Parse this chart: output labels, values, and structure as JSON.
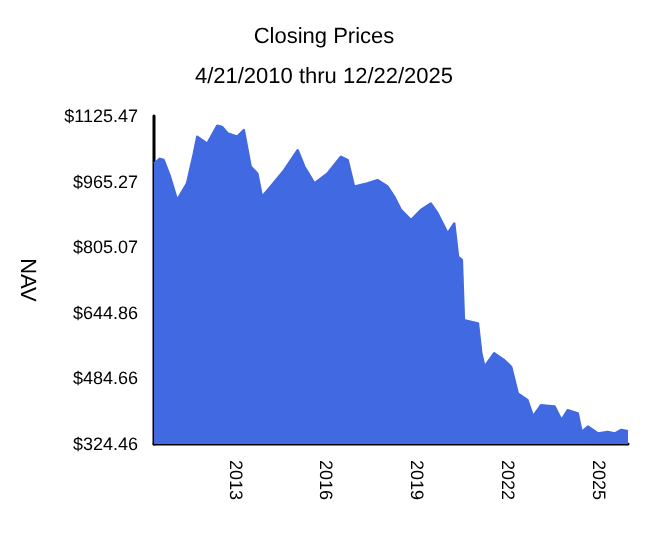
{
  "chart_data": {
    "type": "area",
    "title": "Closing Prices",
    "subtitle": "4/21/2010 thru 12/22/2025",
    "ylabel": "NAV",
    "x": [
      "2010-04-21",
      "2010-07-01",
      "2010-08-15",
      "2010-11-01",
      "2011-01-25",
      "2011-05-25",
      "2011-08-15",
      "2011-09-25",
      "2012-01-25",
      "2012-05-25",
      "2012-07-20",
      "2012-09-25",
      "2013-01-20",
      "2013-04-10",
      "2013-07-01",
      "2013-09-20",
      "2013-11-15",
      "2014-03-01",
      "2014-08-10",
      "2015-01-20",
      "2015-04-10",
      "2015-08-10",
      "2016-01-15",
      "2016-06-25",
      "2016-09-15",
      "2016-12-01",
      "2017-05-10",
      "2017-09-10",
      "2018-01-10",
      "2018-04-01",
      "2018-06-20",
      "2018-10-20",
      "2019-02-15",
      "2019-06-15",
      "2019-09-05",
      "2020-01-05",
      "2020-03-25",
      "2020-05-10",
      "2020-06-25",
      "2020-07-20",
      "2021-01-05",
      "2021-02-15",
      "2021-03-25",
      "2021-07-20",
      "2021-11-20",
      "2022-02-10",
      "2022-05-01",
      "2022-08-25",
      "2022-11-01",
      "2023-02-05",
      "2023-07-20",
      "2023-10-10",
      "2023-12-25",
      "2024-04-25",
      "2024-06-10",
      "2024-08-25",
      "2024-12-25",
      "2025-04-20",
      "2025-07-15",
      "2025-10-01",
      "2025-12-22"
    ],
    "series": [
      {
        "color": "#4169e1",
        "values": [
          1009,
          1021,
          1018,
          977,
          920,
          961,
          1034,
          1075,
          1058,
          1102,
          1099,
          1083,
          1075,
          1091,
          1002,
          985,
          928,
          953,
          993,
          1042,
          1002,
          961,
          985,
          1026,
          1018,
          953,
          961,
          969,
          953,
          928,
          896,
          871,
          896,
          912,
          888,
          839,
          863,
          782,
          774,
          627,
          619,
          546,
          513,
          546,
          529,
          513,
          448,
          432,
          392,
          419,
          416,
          383,
          407,
          399,
          354,
          367,
          350,
          354,
          350,
          359,
          356
        ]
      }
    ],
    "xlim": [
      "2010-04-21",
      "2025-12-22"
    ],
    "xticks": [
      {
        "value": "2013-01-01",
        "label": "2013"
      },
      {
        "value": "2016-01-01",
        "label": "2016"
      },
      {
        "value": "2019-01-01",
        "label": "2019"
      },
      {
        "value": "2022-01-01",
        "label": "2022"
      },
      {
        "value": "2025-01-01",
        "label": "2025"
      }
    ],
    "ylim": [
      324.46,
      1125.47
    ],
    "yticks": [
      {
        "value": 324.46,
        "label": "$324.46"
      },
      {
        "value": 484.66,
        "label": "$484.66"
      },
      {
        "value": 644.86,
        "label": "$644.86"
      },
      {
        "value": 805.07,
        "label": "$805.07"
      },
      {
        "value": 965.27,
        "label": "$965.27"
      },
      {
        "value": 1125.47,
        "label": "$1125.47"
      }
    ]
  }
}
